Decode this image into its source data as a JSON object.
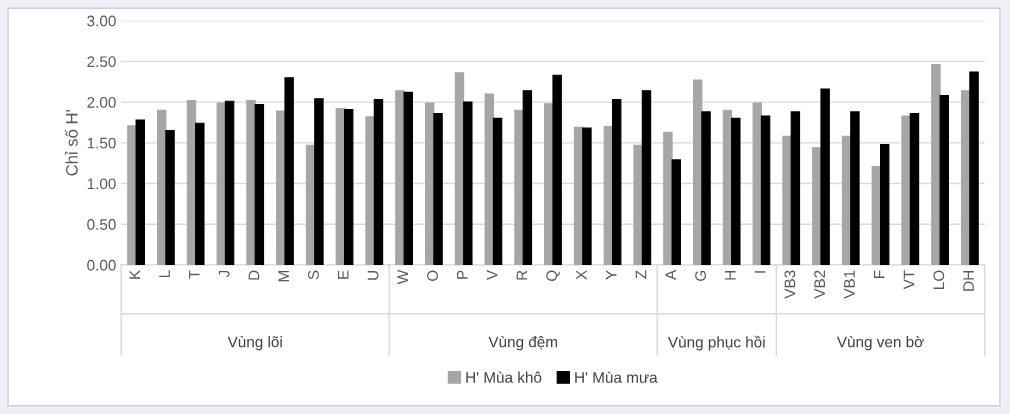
{
  "chart_data": {
    "type": "bar",
    "ylabel": "Chỉ số H'",
    "categories": [
      "K",
      "L",
      "T",
      "J",
      "D",
      "M",
      "S",
      "E",
      "U",
      "W",
      "O",
      "P",
      "V",
      "R",
      "Q",
      "X",
      "Y",
      "Z",
      "A",
      "G",
      "H",
      "I",
      "VB3",
      "VB2",
      "VB1",
      "F",
      "VT",
      "LO",
      "DH"
    ],
    "series": [
      {
        "name": "H' Mùa khô",
        "color": "#a6a6a6",
        "values": [
          1.71,
          1.9,
          2.02,
          1.99,
          2.02,
          1.89,
          1.47,
          1.92,
          1.82,
          2.14,
          1.99,
          2.36,
          2.1,
          1.9,
          1.98,
          1.69,
          1.7,
          1.47,
          1.63,
          2.27,
          1.9,
          1.99,
          1.58,
          1.44,
          1.58,
          1.21,
          1.83,
          2.46,
          2.14
        ]
      },
      {
        "name": "H' Mùa mưa",
        "color": "#000000",
        "values": [
          1.78,
          1.65,
          1.74,
          2.01,
          1.97,
          2.3,
          2.04,
          1.91,
          2.03,
          2.12,
          1.86,
          2.0,
          1.8,
          2.14,
          2.33,
          1.68,
          2.03,
          2.14,
          1.29,
          1.88,
          1.8,
          1.83,
          1.88,
          2.16,
          1.88,
          1.48,
          1.86,
          2.08,
          2.37
        ]
      }
    ],
    "ylim": [
      0,
      3
    ],
    "yticks": [
      {
        "value": 0,
        "label": "0.00"
      },
      {
        "value": 0.5,
        "label": "0.50"
      },
      {
        "value": 1,
        "label": "1.00"
      },
      {
        "value": 1.5,
        "label": "1.50"
      },
      {
        "value": 2,
        "label": "2.00"
      },
      {
        "value": 2.5,
        "label": "2.50"
      },
      {
        "value": 3,
        "label": "3.00"
      }
    ],
    "grid": "y",
    "legend": "bottom",
    "annotations": [
      "Vùng lõi",
      "Vùng đệm",
      "Vùng phục hồi",
      "Vùng ven bờ"
    ]
  }
}
